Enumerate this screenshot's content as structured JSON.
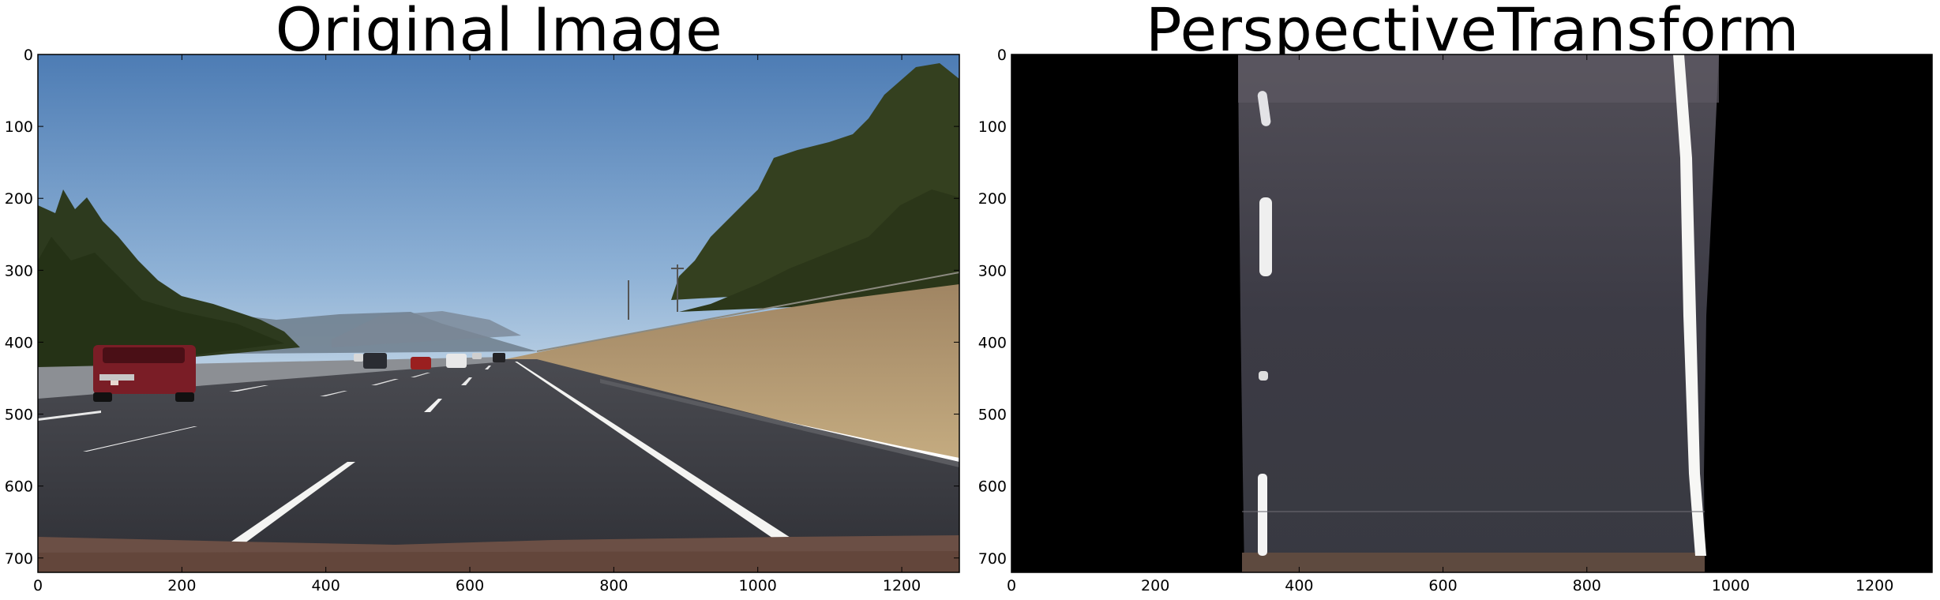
{
  "panels": [
    {
      "id": "left",
      "title": "Original Image",
      "x_ticks": [
        "0",
        "200",
        "400",
        "600",
        "800",
        "1000",
        "1200"
      ],
      "y_ticks": [
        "0",
        "100",
        "200",
        "300",
        "400",
        "500",
        "600",
        "700"
      ],
      "x_tick_values": [
        0,
        200,
        400,
        600,
        800,
        1000,
        1200
      ],
      "y_tick_values": [
        0,
        100,
        200,
        300,
        400,
        500,
        600,
        700
      ],
      "xlim": [
        0,
        1280
      ],
      "ylim": [
        720,
        0
      ],
      "image": "highway-scene-photo"
    },
    {
      "id": "right",
      "title": "PerspectiveTransform",
      "x_ticks": [
        "0",
        "200",
        "400",
        "600",
        "800",
        "1000",
        "1200"
      ],
      "y_ticks": [
        "0",
        "100",
        "200",
        "300",
        "400",
        "500",
        "600",
        "700"
      ],
      "x_tick_values": [
        0,
        200,
        400,
        600,
        800,
        1000,
        1200
      ],
      "y_tick_values": [
        0,
        100,
        200,
        300,
        400,
        500,
        600,
        700
      ],
      "xlim": [
        0,
        1280
      ],
      "ylim": [
        720,
        0
      ],
      "image": "birds-eye-lane-view"
    }
  ],
  "colors": {
    "sky_top": "#4f7fb6",
    "sky_bottom": "#a9c4df",
    "asphalt": "#3b3c43",
    "dry_grass": "#b59a6e",
    "trees": "#2f3a1f",
    "lane_white": "#f2f2f2",
    "car_red": "#7a1d26",
    "hood": "#6b4f45"
  }
}
